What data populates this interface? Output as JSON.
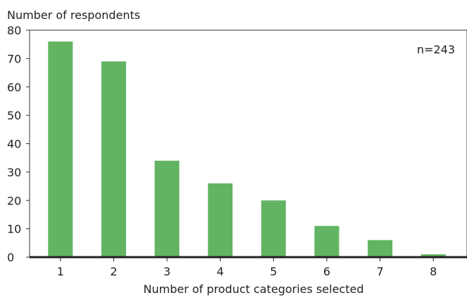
{
  "chart_data": {
    "type": "bar",
    "ylabel": "Number of respondents",
    "xlabel": "Number of product categories selected",
    "annotation": "n=243",
    "categories": [
      "1",
      "2",
      "3",
      "4",
      "5",
      "6",
      "7",
      "8"
    ],
    "values": [
      76,
      69,
      34,
      26,
      20,
      11,
      6,
      1
    ],
    "ylim": [
      0,
      80
    ],
    "yticks": [
      0,
      10,
      20,
      30,
      40,
      50,
      60,
      70,
      80
    ],
    "grid": false,
    "legend": "none",
    "bar_color": "#62b462",
    "axis_color": "#222222",
    "frame_color": "#333333"
  }
}
